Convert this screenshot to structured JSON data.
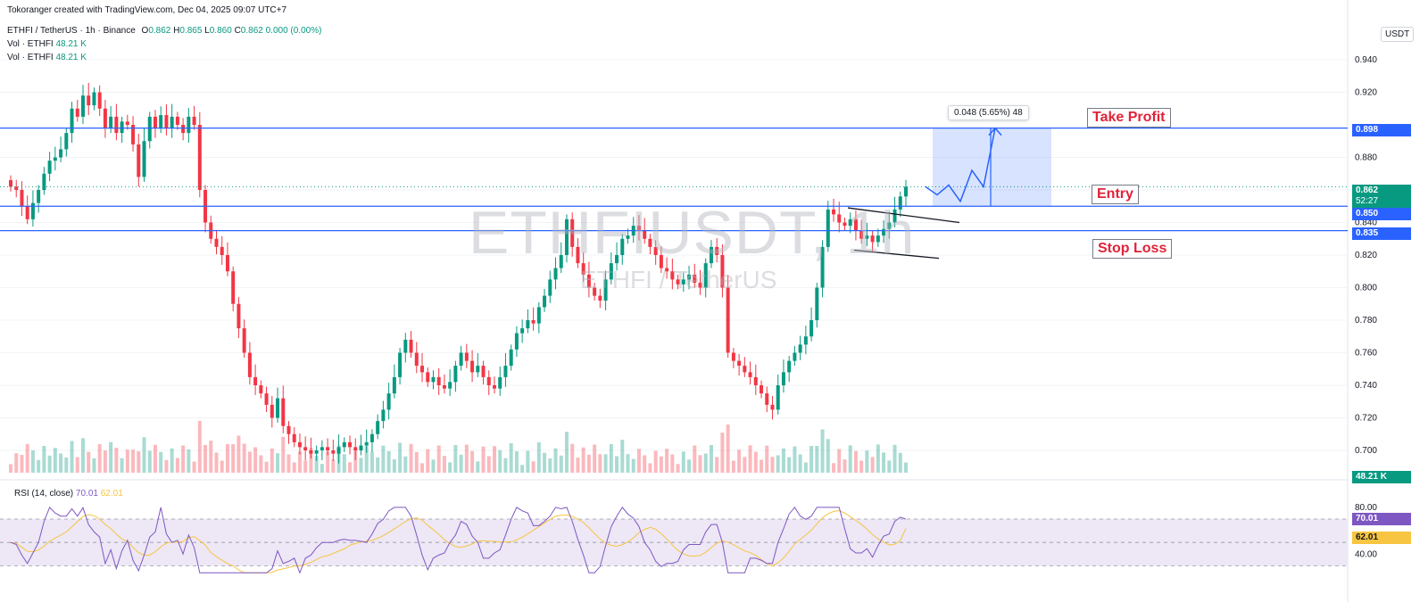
{
  "header": {
    "credit": "Tokoranger created with TradingView.com, Dec 04, 2025 09:07 UTC+7",
    "symbol_line": "ETHFI / TetherUS · 1h · Binance",
    "ohlc": {
      "o_label": "O",
      "o": "0.862",
      "h_label": "H",
      "h": "0.865",
      "l_label": "L",
      "l": "0.860",
      "c_label": "C",
      "c": "0.862",
      "change": "0.000 (0.00%)"
    },
    "vol_rows": [
      {
        "label": "Vol · ETHFI",
        "value": "48.21 K"
      },
      {
        "label": "Vol · ETHFI",
        "value": "48.21 K"
      }
    ]
  },
  "watermark": {
    "symbol": "ETHFIUSDT, 1h",
    "name": "ETHFI / TetherUS"
  },
  "currency_label": "USDT",
  "annotations": {
    "take_profit": "Take Profit",
    "entry": "Entry",
    "stop_loss": "Stop Loss",
    "measure": "0.048 (5.65%) 48"
  },
  "price_tags": {
    "take_profit": "0.898",
    "last": "0.862",
    "countdown": "52:27",
    "entry": "0.850",
    "stop_loss": "0.835",
    "volume": "48.21 K",
    "rsi": "70.01",
    "rsi_ma": "62.01"
  },
  "rsi_legend": {
    "label": "RSI (14, close)",
    "rsi": "70.01",
    "ma": "62.01"
  },
  "colors": {
    "up": "#089981",
    "down": "#f23645",
    "level_line": "#2962ff",
    "rsi_line": "#7e57c2",
    "rsi_ma": "#f7c541",
    "band": "#ede7f6",
    "label_text": "#e0233a"
  },
  "chart_data": {
    "type": "candlestick",
    "title": "ETHFI / TetherUS · 1h · Binance",
    "ylabel": "USDT",
    "ylim": [
      0.69,
      0.95
    ],
    "yticks": [
      "0.940",
      "0.920",
      "0.880",
      "0.860",
      "0.840",
      "0.820",
      "0.800",
      "0.780",
      "0.760",
      "0.740",
      "0.720",
      "0.700"
    ],
    "levels": [
      {
        "name": "Take Profit",
        "value": 0.898
      },
      {
        "name": "Entry",
        "value": 0.85
      },
      {
        "name": "Stop Loss",
        "value": 0.835
      }
    ],
    "close_path": [
      0.862,
      0.86,
      0.85,
      0.842,
      0.852,
      0.86,
      0.87,
      0.878,
      0.88,
      0.885,
      0.895,
      0.91,
      0.905,
      0.918,
      0.912,
      0.92,
      0.91,
      0.898,
      0.905,
      0.895,
      0.902,
      0.9,
      0.888,
      0.868,
      0.89,
      0.905,
      0.898,
      0.906,
      0.898,
      0.905,
      0.9,
      0.895,
      0.905,
      0.9,
      0.86,
      0.84,
      0.83,
      0.825,
      0.82,
      0.81,
      0.79,
      0.775,
      0.76,
      0.745,
      0.74,
      0.735,
      0.728,
      0.72,
      0.732,
      0.715,
      0.71,
      0.705,
      0.702,
      0.7,
      0.698,
      0.7,
      0.702,
      0.7,
      0.698,
      0.702,
      0.705,
      0.702,
      0.7,
      0.703,
      0.705,
      0.71,
      0.718,
      0.725,
      0.735,
      0.745,
      0.76,
      0.768,
      0.76,
      0.752,
      0.748,
      0.742,
      0.745,
      0.74,
      0.738,
      0.742,
      0.752,
      0.76,
      0.755,
      0.748,
      0.752,
      0.745,
      0.74,
      0.738,
      0.745,
      0.752,
      0.762,
      0.772,
      0.775,
      0.78,
      0.778,
      0.788,
      0.795,
      0.805,
      0.812,
      0.82,
      0.842,
      0.825,
      0.815,
      0.808,
      0.8,
      0.795,
      0.792,
      0.805,
      0.815,
      0.82,
      0.83,
      0.832,
      0.838,
      0.835,
      0.83,
      0.825,
      0.82,
      0.812,
      0.81,
      0.805,
      0.802,
      0.805,
      0.808,
      0.803,
      0.8,
      0.815,
      0.825,
      0.82,
      0.8,
      0.76,
      0.755,
      0.752,
      0.748,
      0.745,
      0.74,
      0.735,
      0.728,
      0.725,
      0.74,
      0.748,
      0.755,
      0.76,
      0.765,
      0.77,
      0.78,
      0.8,
      0.825,
      0.848,
      0.845,
      0.84,
      0.838,
      0.842,
      0.835,
      0.83,
      0.832,
      0.828,
      0.832,
      0.836,
      0.84,
      0.848,
      0.856,
      0.862
    ],
    "forecast_path": [
      0.862,
      0.857,
      0.863,
      0.853,
      0.872,
      0.862,
      0.898
    ],
    "volume_last": "48.21 K",
    "rsi": {
      "period": 14,
      "last": 70.01,
      "ma_last": 62.01,
      "band": [
        30,
        70
      ],
      "yticks": [
        "80.00",
        "40.00"
      ]
    }
  }
}
